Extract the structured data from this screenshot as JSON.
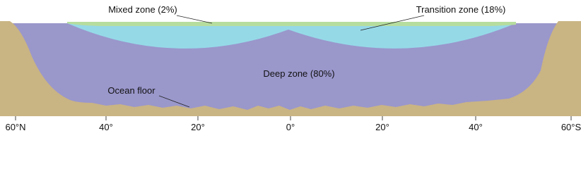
{
  "labels": {
    "mixed": "Mixed zone (2%)",
    "transition": "Transition zone (18%)",
    "deep": "Deep zone (80%)",
    "floor": "Ocean floor"
  },
  "axis": {
    "ticks": [
      "60°N",
      "40°",
      "20°",
      "0°",
      "20°",
      "40°",
      "60°S"
    ]
  }
}
